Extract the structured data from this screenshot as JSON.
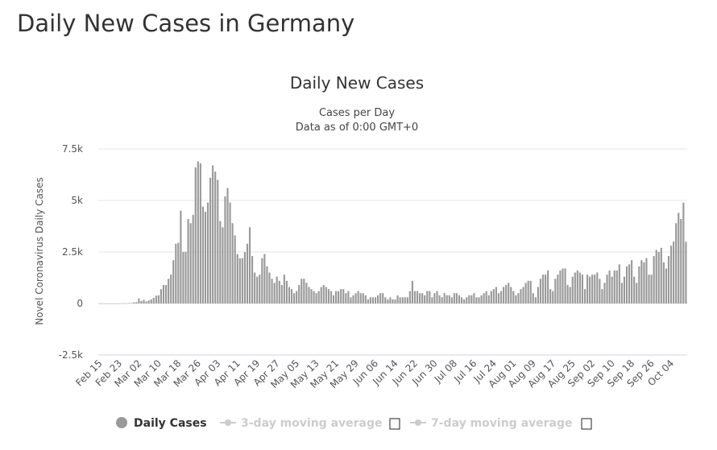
{
  "page": {
    "title": "Daily New Cases in Germany"
  },
  "chart_data": {
    "type": "bar",
    "title": "Daily New Cases",
    "subtitle": "Cases per Day",
    "subtitle2": "Data as of 0:00 GMT+0",
    "ylabel": "Novel Coronavirus Daily Cases",
    "xlabel": "",
    "ylim": [
      -2500,
      7500
    ],
    "yticks": [
      {
        "v": 7500,
        "label": "7.5k"
      },
      {
        "v": 5000,
        "label": "5k"
      },
      {
        "v": 2500,
        "label": "2.5k"
      },
      {
        "v": 0,
        "label": "0"
      },
      {
        "v": -2500,
        "label": "-2.5k"
      }
    ],
    "xtick_every": 8,
    "xticks": [
      "Feb 15",
      "Feb 23",
      "Mar 02",
      "Mar 10",
      "Mar 18",
      "Mar 26",
      "Apr 03",
      "Apr 11",
      "Apr 19",
      "Apr 27",
      "May 05",
      "May 13",
      "May 21",
      "May 29",
      "Jun 06",
      "Jun 14",
      "Jun 22",
      "Jun 30",
      "Jul 08",
      "Jul 16",
      "Jul 24",
      "Aug 01",
      "Aug 09",
      "Aug 17",
      "Aug 25",
      "Sep 02",
      "Sep 10",
      "Sep 18",
      "Sep 26",
      "Oct 04"
    ],
    "grid": true,
    "bar_color": "#999999",
    "legend": {
      "position": "bottom",
      "items": [
        {
          "label": "Daily Cases",
          "active": true
        },
        {
          "label": "3-day moving average",
          "active": false
        },
        {
          "label": "7-day moving average",
          "active": false
        }
      ]
    },
    "series": [
      {
        "name": "Daily Cases",
        "values": [
          0,
          0,
          0,
          0,
          0,
          0,
          0,
          0,
          0,
          0,
          10,
          5,
          20,
          20,
          50,
          66,
          250,
          120,
          180,
          100,
          150,
          200,
          270,
          380,
          400,
          700,
          900,
          900,
          1200,
          1400,
          2100,
          2900,
          2950,
          4500,
          2500,
          2500,
          4100,
          3900,
          4300,
          6600,
          6900,
          6800,
          4700,
          4450,
          4900,
          6100,
          6700,
          6400,
          6000,
          4000,
          3700,
          5200,
          5600,
          4900,
          3900,
          3300,
          2400,
          2200,
          2200,
          2500,
          2900,
          3700,
          2300,
          1500,
          1300,
          1400,
          2200,
          2400,
          1800,
          1500,
          1200,
          1000,
          1300,
          1100,
          900,
          1400,
          1100,
          800,
          700,
          500,
          600,
          900,
          1200,
          1200,
          1000,
          800,
          700,
          600,
          500,
          600,
          800,
          900,
          800,
          700,
          600,
          400,
          600,
          600,
          700,
          700,
          500,
          600,
          300,
          400,
          500,
          600,
          500,
          500,
          400,
          200,
          300,
          300,
          300,
          400,
          500,
          500,
          300,
          200,
          300,
          200,
          200,
          400,
          300,
          300,
          300,
          300,
          600,
          1100,
          600,
          600,
          500,
          500,
          400,
          600,
          600,
          300,
          500,
          600,
          400,
          300,
          500,
          400,
          400,
          300,
          500,
          500,
          400,
          300,
          200,
          300,
          400,
          400,
          500,
          300,
          300,
          400,
          500,
          600,
          400,
          600,
          700,
          800,
          500,
          600,
          800,
          900,
          1000,
          800,
          600,
          400,
          500,
          700,
          800,
          1000,
          1100,
          1100,
          500,
          300,
          800,
          1200,
          1400,
          1400,
          1600,
          700,
          600,
          1200,
          1400,
          1600,
          1700,
          1700,
          900,
          800,
          1300,
          1500,
          1600,
          1500,
          1400,
          700,
          1400,
          1300,
          1400,
          1400,
          1500,
          1200,
          700,
          1000,
          1400,
          1600,
          1300,
          1600,
          1600,
          1900,
          1000,
          1300,
          1800,
          1900,
          2100,
          1300,
          1000,
          1800,
          2100,
          2000,
          2200,
          1400,
          1400,
          2300,
          2600,
          2500,
          2700,
          2000,
          1700,
          2300,
          2800,
          3000,
          3900,
          4400,
          4100,
          4900,
          3000
        ]
      }
    ]
  }
}
